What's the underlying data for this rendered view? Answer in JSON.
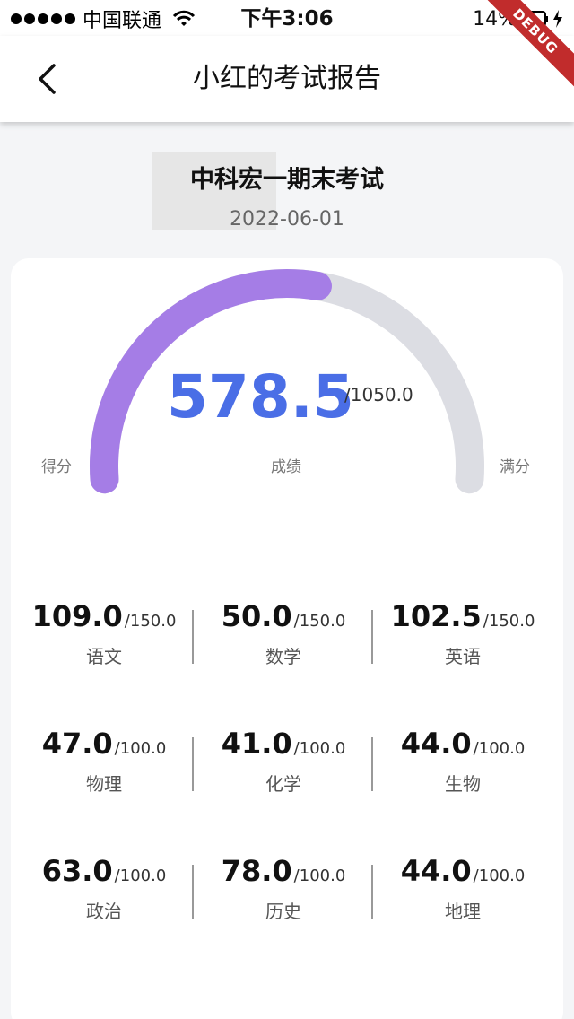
{
  "status_bar": {
    "carrier": "中国联通",
    "time": "下午3:06",
    "battery": "14%"
  },
  "debug_banner": "DEBUG",
  "header": {
    "title": "小红的考试报告"
  },
  "exam": {
    "name": "中科宏一期末考试",
    "date": "2022-06-01"
  },
  "summary": {
    "score": "578.5",
    "total": "/1050.0",
    "score_fraction": 0.551,
    "left_label": "得分",
    "center_label": "成绩",
    "right_label": "满分",
    "progress_color": "#a57de6",
    "track_color": "#dcdde3",
    "score_color": "#4a6ee6"
  },
  "subjects": [
    {
      "name": "语文",
      "score": "109.0",
      "full": "/150.0"
    },
    {
      "name": "数学",
      "score": "50.0",
      "full": "/150.0"
    },
    {
      "name": "英语",
      "score": "102.5",
      "full": "/150.0"
    },
    {
      "name": "物理",
      "score": "47.0",
      "full": "/100.0"
    },
    {
      "name": "化学",
      "score": "41.0",
      "full": "/100.0"
    },
    {
      "name": "生物",
      "score": "44.0",
      "full": "/100.0"
    },
    {
      "name": "政治",
      "score": "63.0",
      "full": "/100.0"
    },
    {
      "name": "历史",
      "score": "78.0",
      "full": "/100.0"
    },
    {
      "name": "地理",
      "score": "44.0",
      "full": "/100.0"
    }
  ]
}
